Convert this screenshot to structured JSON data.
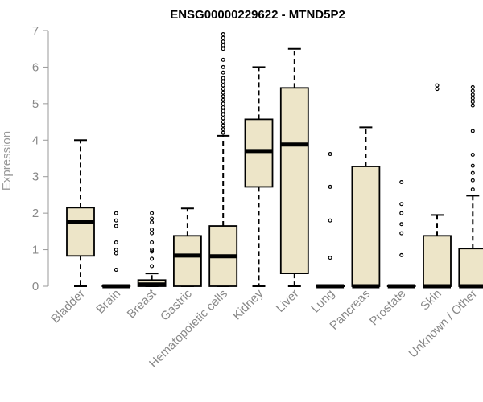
{
  "chart_data": {
    "type": "boxplot",
    "title": "ENSG00000229622 - MTND5P2",
    "ylabel": "Expression",
    "xlabel": "",
    "ylim": [
      0,
      7
    ],
    "yticks": [
      "0",
      "1",
      "2",
      "3",
      "4",
      "5",
      "6",
      "7"
    ],
    "grid": false,
    "colors": {
      "box_fill": "#ede5c8",
      "stroke": "#000000",
      "axis": "#999999",
      "label": "#888888"
    },
    "categories": [
      "Bladder",
      "Brain",
      "Breast",
      "Gastric",
      "Hematopoietic cells",
      "Kidney",
      "Liver",
      "Lung",
      "Pancreas",
      "Prostate",
      "Skin",
      "Unknown / Other"
    ],
    "boxes": [
      {
        "whisker_low": 0,
        "q1": 0.83,
        "median": 1.75,
        "q3": 2.15,
        "whisker_high": 4.0,
        "outliers": []
      },
      {
        "whisker_low": 0,
        "q1": 0,
        "median": 0,
        "q3": 0.02,
        "whisker_high": 0.02,
        "outliers": [
          0.45,
          0.9,
          1.0,
          1.2,
          1.65,
          1.8,
          2.0
        ]
      },
      {
        "whisker_low": 0,
        "q1": 0,
        "median": 0.05,
        "q3": 0.17,
        "whisker_high": 0.35,
        "outliers": [
          0.55,
          0.75,
          0.95,
          1.0,
          1.2,
          1.45,
          1.55,
          1.75,
          1.85,
          2.0
        ]
      },
      {
        "whisker_low": 0,
        "q1": 0,
        "median": 0.84,
        "q3": 1.38,
        "whisker_high": 2.13,
        "outliers": []
      },
      {
        "whisker_low": 0,
        "q1": 0,
        "median": 0.82,
        "q3": 1.65,
        "whisker_high": 4.12,
        "outliers": [
          4.2,
          4.3,
          4.4,
          4.5,
          4.6,
          4.7,
          4.8,
          4.9,
          5.0,
          5.1,
          5.2,
          5.3,
          5.4,
          5.5,
          5.6,
          5.7,
          5.85,
          6.0,
          6.2,
          6.5,
          6.6,
          6.7,
          6.8,
          6.9
        ]
      },
      {
        "whisker_low": 0,
        "q1": 2.72,
        "median": 3.7,
        "q3": 4.57,
        "whisker_high": 6.0,
        "outliers": []
      },
      {
        "whisker_low": 0,
        "q1": 0.35,
        "median": 3.88,
        "q3": 5.43,
        "whisker_high": 6.5,
        "outliers": []
      },
      {
        "whisker_low": 0,
        "q1": 0,
        "median": 0,
        "q3": 0.02,
        "whisker_high": 0.02,
        "outliers": [
          0.78,
          1.8,
          2.72,
          3.62
        ]
      },
      {
        "whisker_low": 0,
        "q1": 0,
        "median": 0,
        "q3": 3.28,
        "whisker_high": 4.35,
        "outliers": []
      },
      {
        "whisker_low": 0,
        "q1": 0,
        "median": 0,
        "q3": 0.02,
        "whisker_high": 0.02,
        "outliers": [
          0.85,
          1.45,
          1.7,
          2.0,
          2.25,
          2.85
        ]
      },
      {
        "whisker_low": 0,
        "q1": 0,
        "median": 0,
        "q3": 1.38,
        "whisker_high": 1.95,
        "outliers": [
          5.4,
          5.5
        ]
      },
      {
        "whisker_low": 0,
        "q1": 0,
        "median": 0,
        "q3": 1.03,
        "whisker_high": 2.48,
        "outliers": [
          2.65,
          2.9,
          3.1,
          3.3,
          3.6,
          4.25,
          4.95,
          5.05,
          5.15,
          5.25,
          5.35,
          5.45
        ]
      }
    ]
  }
}
